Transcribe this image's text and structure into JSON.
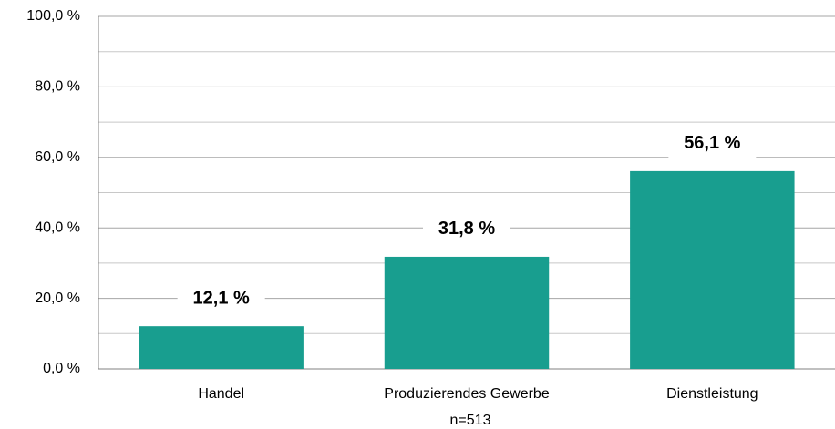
{
  "chart_data": {
    "type": "bar",
    "categories": [
      "Handel",
      "Produzierendes Gewerbe",
      "Dienstleistung"
    ],
    "values": [
      12.1,
      31.8,
      56.1
    ],
    "value_labels": [
      "12,1 %",
      "31,8 %",
      "56,1 %"
    ],
    "color": "#189e8f",
    "xlabel": "n=513",
    "ylim": [
      0,
      100
    ],
    "yticks": [
      {
        "value": 0,
        "label": "0,0 %"
      },
      {
        "value": 20,
        "label": "20,0 %"
      },
      {
        "value": 40,
        "label": "40,0 %"
      },
      {
        "value": 60,
        "label": "60,0 %"
      },
      {
        "value": 80,
        "label": "80,0 %"
      },
      {
        "value": 100,
        "label": "100,0 %"
      }
    ],
    "minor_yticks": [
      10,
      30,
      50,
      70,
      90
    ],
    "grid": true
  }
}
